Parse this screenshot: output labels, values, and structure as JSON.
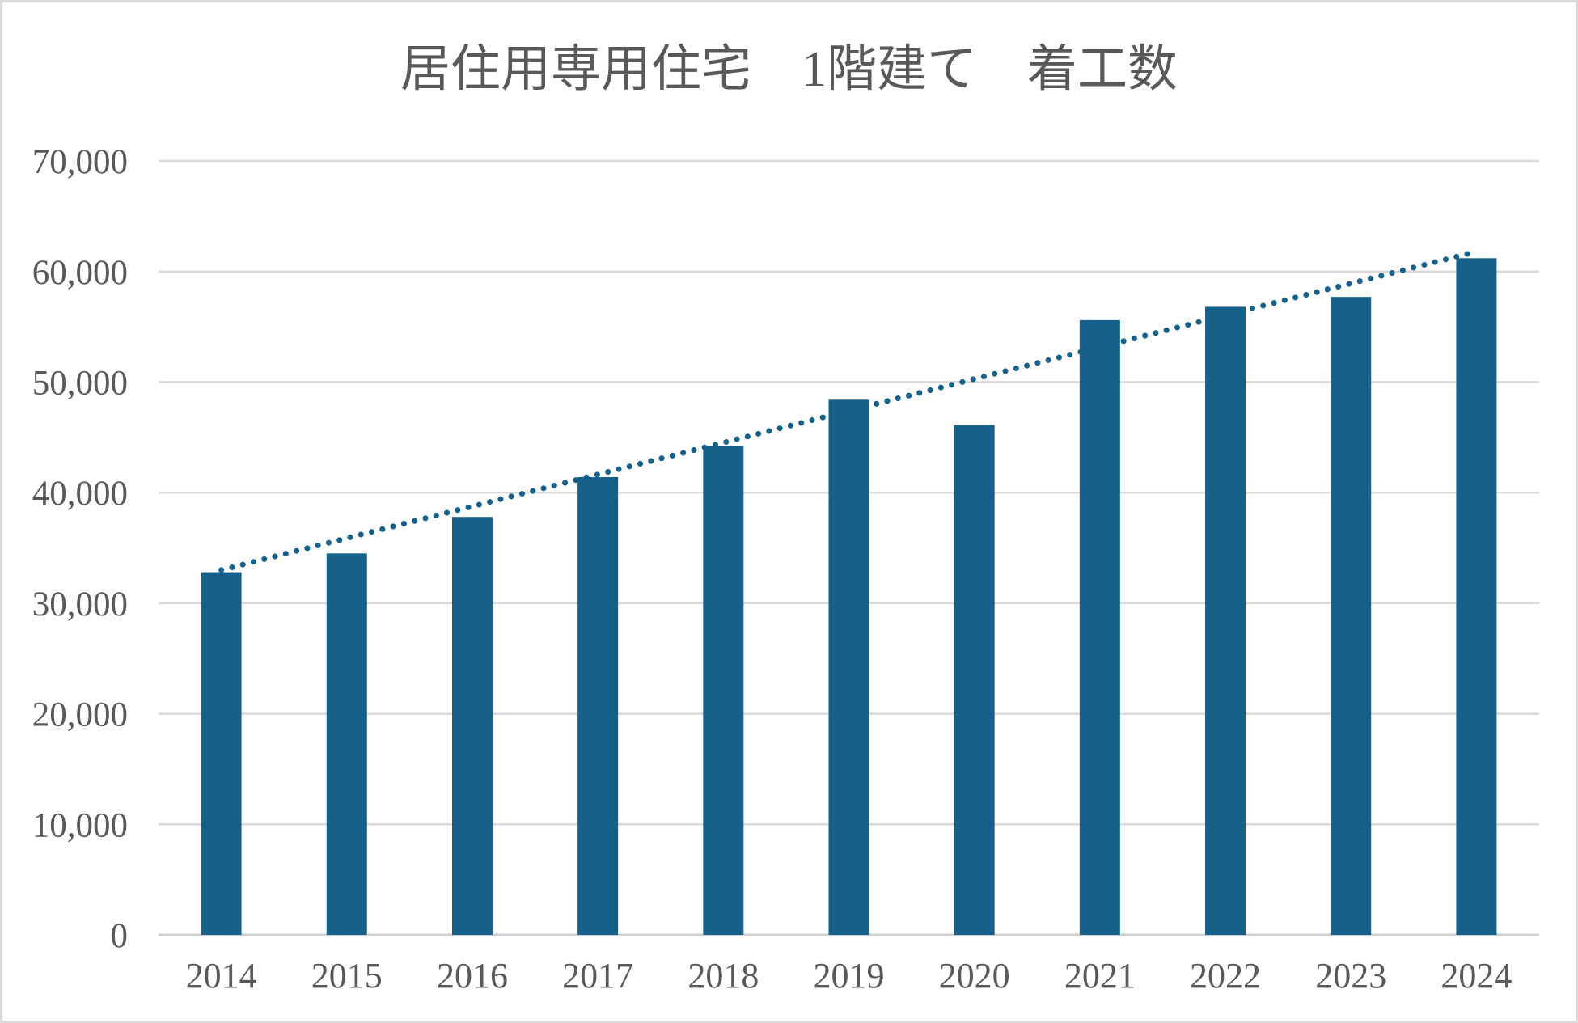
{
  "chart_data": {
    "type": "bar",
    "title": "居住用専用住宅　1階建て　着工数",
    "xlabel": "",
    "ylabel": "",
    "categories": [
      "2014",
      "2015",
      "2016",
      "2017",
      "2018",
      "2019",
      "2020",
      "2021",
      "2022",
      "2023",
      "2024"
    ],
    "values": [
      32800,
      34500,
      37800,
      41400,
      44200,
      48400,
      46100,
      55600,
      56800,
      57700,
      61200
    ],
    "trendline": {
      "type": "linear",
      "style": "dotted",
      "start_value": 33000,
      "end_value": 61800
    },
    "ylim": [
      0,
      70000
    ],
    "ytick_step": 10000,
    "ytick_labels": [
      "0",
      "10,000",
      "20,000",
      "30,000",
      "40,000",
      "50,000",
      "60,000",
      "70,000"
    ],
    "grid": true,
    "legend": false,
    "colors": {
      "bar": "#166189",
      "trendline": "#166189",
      "gridline": "#d9d9d9",
      "axis": "#cfcfcf",
      "text": "#595959",
      "border": "#d9d9d9",
      "background": "#ffffff"
    }
  }
}
